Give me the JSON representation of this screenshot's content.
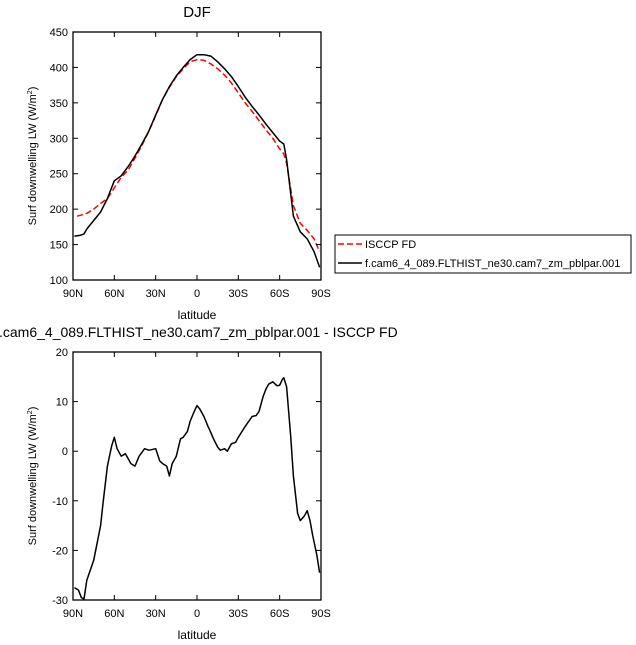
{
  "chart_data": [
    {
      "type": "line",
      "title": "DJF",
      "xlabel": "latitude",
      "ylabel": "Surf downwelling LW (W/m",
      "ylabel_sup": "2",
      "ylabel_close": ")",
      "xlim": [
        90,
        -90
      ],
      "ylim": [
        100,
        450
      ],
      "x_ticks": [
        90,
        60,
        30,
        0,
        -30,
        -60,
        -90
      ],
      "x_tick_labels": [
        "90N",
        "60N",
        "30N",
        "0",
        "30S",
        "60S",
        "90S"
      ],
      "y_ticks": [
        100,
        150,
        200,
        250,
        300,
        350,
        400,
        450
      ],
      "y_tick_labels": [
        "100",
        "150",
        "200",
        "250",
        "300",
        "350",
        "400",
        "450"
      ],
      "legend_position": "right",
      "series": [
        {
          "name": "ISCCP FD",
          "color": "#ff0000",
          "dash": "dashed",
          "x": [
            87,
            80,
            75,
            70,
            65,
            60,
            55,
            50,
            45,
            40,
            35,
            30,
            25,
            20,
            15,
            10,
            5,
            0,
            -5,
            -10,
            -15,
            -20,
            -25,
            -30,
            -35,
            -40,
            -45,
            -50,
            -55,
            -60,
            -63,
            -65,
            -70,
            -75,
            -80,
            -85,
            -89
          ],
          "y": [
            190,
            194,
            200,
            208,
            215,
            230,
            245,
            255,
            272,
            290,
            310,
            332,
            355,
            372,
            387,
            398,
            408,
            411,
            410,
            405,
            398,
            389,
            378,
            364,
            350,
            338,
            325,
            312,
            300,
            285,
            278,
            265,
            205,
            180,
            170,
            158,
            140
          ]
        },
        {
          "name": "f.cam6_4_089.FLTHIST_ne30.cam7_zm_pblpar.001",
          "color": "#000000",
          "dash": "solid",
          "x": [
            89,
            85,
            82,
            80,
            75,
            70,
            65,
            60,
            55,
            50,
            45,
            40,
            35,
            30,
            25,
            20,
            15,
            10,
            5,
            0,
            -5,
            -10,
            -15,
            -20,
            -25,
            -30,
            -35,
            -40,
            -45,
            -50,
            -55,
            -60,
            -63,
            -65,
            -70,
            -75,
            -80,
            -85,
            -89
          ],
          "y": [
            162,
            163,
            165,
            172,
            184,
            196,
            215,
            240,
            247,
            260,
            275,
            292,
            310,
            333,
            355,
            373,
            388,
            400,
            411,
            418,
            418,
            416,
            408,
            398,
            387,
            373,
            358,
            345,
            333,
            320,
            308,
            296,
            292,
            270,
            190,
            168,
            158,
            140,
            118
          ]
        }
      ]
    },
    {
      "type": "line",
      "title": ".cam6_4_089.FLTHIST_ne30.cam7_zm_pblpar.001 - ISCCP FD",
      "xlabel": "latitude",
      "ylabel": "Surf downwelling LW (W/m",
      "ylabel_sup": "2",
      "ylabel_close": ")",
      "xlim": [
        90,
        -90
      ],
      "ylim": [
        -30,
        20
      ],
      "x_ticks": [
        90,
        60,
        30,
        0,
        -30,
        -60,
        -90
      ],
      "x_tick_labels": [
        "90N",
        "60N",
        "30N",
        "0",
        "30S",
        "60S",
        "90S"
      ],
      "y_ticks": [
        -30,
        -20,
        -10,
        0,
        10,
        20
      ],
      "y_tick_labels": [
        "-30",
        "-20",
        "-10",
        "0",
        "10",
        "20"
      ],
      "series": [
        {
          "color": "#000000",
          "dash": "solid",
          "x": [
            89,
            86,
            84,
            82,
            80,
            75,
            70,
            68,
            65,
            62,
            60,
            58,
            55,
            52,
            48,
            45,
            42,
            38,
            35,
            33,
            30,
            27,
            25,
            22,
            20,
            18,
            15,
            12,
            10,
            7,
            5,
            2,
            0,
            -2,
            -5,
            -8,
            -10,
            -12,
            -15,
            -17,
            -20,
            -22,
            -25,
            -28,
            -30,
            -35,
            -40,
            -43,
            -45,
            -48,
            -50,
            -52,
            -55,
            -58,
            -60,
            -62,
            -63,
            -65,
            -68,
            -70,
            -73,
            -75,
            -78,
            -80,
            -82,
            -84,
            -87,
            -89
          ],
          "y": [
            -27.5,
            -28,
            -29.5,
            -29.8,
            -26,
            -22,
            -15,
            -10,
            -3,
            1,
            2.8,
            0.5,
            -1,
            -0.5,
            -2.5,
            -3,
            -1,
            0.5,
            0.2,
            0.3,
            0.5,
            -2,
            -2.5,
            -3,
            -5,
            -2.5,
            -1,
            2.5,
            2.8,
            4,
            6,
            8,
            9.2,
            8.5,
            7,
            5,
            3.8,
            2.5,
            0.8,
            0.2,
            0.5,
            0,
            1.5,
            1.8,
            2.8,
            5,
            7,
            7.2,
            8,
            11,
            12.5,
            13.5,
            14,
            13.2,
            13.3,
            14.5,
            14.8,
            13,
            3,
            -5,
            -12.5,
            -14,
            -13,
            -12,
            -14,
            -17,
            -21,
            -24.5
          ]
        }
      ]
    }
  ]
}
